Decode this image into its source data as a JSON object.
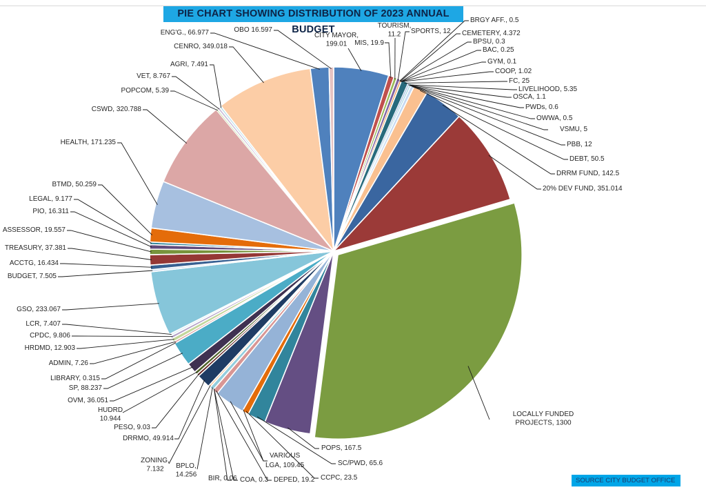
{
  "chart_data": {
    "type": "pie",
    "title": "PIE CHART SHOWING DISTRIBUTION OF 2023 ANNUAL BUDGET",
    "source": "SOURCE   CITY BUDGET  OFFICE",
    "slices": [
      {
        "name": "CITY MAYOR",
        "value": 199.01,
        "label": [
          "CITY MAYOR,",
          "199.01"
        ],
        "color": "#4f81bd"
      },
      {
        "name": "MIS",
        "value": 19.9,
        "label": [
          "MIS, 19.9"
        ],
        "color": "#c0504d"
      },
      {
        "name": "TOURISM",
        "value": 11.2,
        "label": [
          "TOURISM,",
          "11.2"
        ],
        "color": "#9bbb59"
      },
      {
        "name": "SPORTS",
        "value": 12,
        "label": [
          "SPORTS, 12"
        ],
        "color": "#8064a2"
      },
      {
        "name": "BRGY AFF.",
        "value": 0.5,
        "label": [
          "BRGY AFF., 0.5"
        ],
        "color": "#4bacc6"
      },
      {
        "name": "CEMETERY",
        "value": 4.372,
        "label": [
          "CEMETERY, 4.372"
        ],
        "color": "#f79646"
      },
      {
        "name": "BPSU",
        "value": 0.3,
        "label": [
          "BPSU, 0.3"
        ],
        "color": "#2c4d75"
      },
      {
        "name": "BAC",
        "value": 0.25,
        "label": [
          "BAC, 0.25"
        ],
        "color": "#772c2a"
      },
      {
        "name": "GYM",
        "value": 0.1,
        "label": [
          "GYM, 0.1"
        ],
        "color": "#5f7530"
      },
      {
        "name": "COOP",
        "value": 1.02,
        "label": [
          "COOP, 1.02"
        ],
        "color": "#4d3b62"
      },
      {
        "name": "FC",
        "value": 25,
        "label": [
          "FC, 25"
        ],
        "color": "#276a7c"
      },
      {
        "name": "LIVELIHOOD",
        "value": 5.35,
        "label": [
          "LIVELIHOOD, 5.35"
        ],
        "color": "#b9cde5"
      },
      {
        "name": "OSCA",
        "value": 1.1,
        "label": [
          "OSCA, 1.1"
        ],
        "color": "#93cddd"
      },
      {
        "name": "PWDs",
        "value": 0.6,
        "label": [
          "PWDs, 0.6"
        ],
        "color": "#c3d69b"
      },
      {
        "name": "OWWA",
        "value": 0.5,
        "label": [
          "OWWA, 0.5"
        ],
        "color": "#b3a2c7"
      },
      {
        "name": "VSMU",
        "value": 5,
        "label": [
          "VSMU, 5"
        ],
        "color": "#93cddd"
      },
      {
        "name": "PBB",
        "value": 12,
        "label": [
          "PBB, 12"
        ],
        "color": "#c6d9f1"
      },
      {
        "name": "DEBT",
        "value": 50.5,
        "label": [
          "DEBT, 50.5"
        ],
        "color": "#fac090"
      },
      {
        "name": "DRRM FUND",
        "value": 142.5,
        "label": [
          "DRRM FUND, 142.5"
        ],
        "color": "#3a66a0"
      },
      {
        "name": "20% DEV FUND",
        "value": 351.014,
        "label": [
          "20% DEV FUND, 351.014"
        ],
        "color": "#9b3a38"
      },
      {
        "name": "LOCALLY FUNDED PROJECTS",
        "value": 1300,
        "label": [
          "LOCALLY FUNDED",
          "PROJECTS, 1300"
        ],
        "color": "#7b9c41"
      },
      {
        "name": "POPS",
        "value": 167.5,
        "label": [
          "POPS, 167.5"
        ],
        "color": "#644e83"
      },
      {
        "name": "SC/PWD",
        "value": 65.6,
        "label": [
          "SC/PWD, 65.6"
        ],
        "color": "#31859c"
      },
      {
        "name": "CCPC",
        "value": 23.5,
        "label": [
          "CCPC, 23.5"
        ],
        "color": "#e46c0a"
      },
      {
        "name": "VARIOUS",
        "value": 0,
        "label": [
          "VARIOUS"
        ],
        "color": "#95b3d7"
      },
      {
        "name": "LGA",
        "value": 109.45,
        "label": [
          "LGA, 109.45"
        ],
        "color": "#95b3d7"
      },
      {
        "name": "DEPED",
        "value": 19.2,
        "label": [
          "DEPED, 19.2"
        ],
        "color": "#d99694"
      },
      {
        "name": "COA",
        "value": 0.3,
        "label": [
          "COA, 0.3"
        ],
        "color": "#c3d69b"
      },
      {
        "name": "BIR",
        "value": 0.06,
        "label": [
          "BIR, 0.06"
        ],
        "color": "#b3a2c7"
      },
      {
        "name": "BPLO",
        "value": 14.256,
        "label": [
          "BPLO,",
          "14.256"
        ],
        "color": "#93cddd"
      },
      {
        "name": "ZONING",
        "value": 7.132,
        "label": [
          "ZONING,",
          "7.132"
        ],
        "color": "#fac090"
      },
      {
        "name": "DRRMO",
        "value": 49.914,
        "label": [
          "DRRMO, 49.914"
        ],
        "color": "#1f3c64"
      },
      {
        "name": "PESO",
        "value": 9.03,
        "label": [
          "PESO, 9.03"
        ],
        "color": "#632523"
      },
      {
        "name": "HUDRD",
        "value": 10.944,
        "label": [
          "HUDRD",
          "10.944"
        ],
        "color": "#4f6228"
      },
      {
        "name": "OVM",
        "value": 36.051,
        "label": [
          "OVM, 36.051"
        ],
        "color": "#3f3151"
      },
      {
        "name": "SP",
        "value": 88.237,
        "label": [
          "SP, 88.237"
        ],
        "color": "#4bacc6"
      },
      {
        "name": "LIBRARY",
        "value": 0.315,
        "label": [
          "LIBRARY, 0.315"
        ],
        "color": "#e46c0a"
      },
      {
        "name": "ADMIN",
        "value": 7.26,
        "label": [
          "ADMIN, 7.26"
        ],
        "color": "#d99694"
      },
      {
        "name": "HRDMD",
        "value": 12.903,
        "label": [
          "HRDMD, 12.903"
        ],
        "color": "#c3d69b"
      },
      {
        "name": "CPDC",
        "value": 9.806,
        "label": [
          "CPDC, 9.806"
        ],
        "color": "#b3a2c7"
      },
      {
        "name": "LCR",
        "value": 7.407,
        "label": [
          "LCR, 7.407"
        ],
        "color": "#dbeef4"
      },
      {
        "name": "GSO",
        "value": 233.067,
        "label": [
          "GSO, 233.067"
        ],
        "color": "#86c6da"
      },
      {
        "name": "BUDGET",
        "value": 7.505,
        "label": [
          "BUDGET, 7.505"
        ],
        "color": "#c6d9f1"
      },
      {
        "name": "ACCTG",
        "value": 16.434,
        "label": [
          "ACCTG, 16.434"
        ],
        "color": "#376092"
      },
      {
        "name": "TREASURY",
        "value": 37.381,
        "label": [
          "TREASURY, 37.381"
        ],
        "color": "#953735"
      },
      {
        "name": "ASSESSOR",
        "value": 19.557,
        "label": [
          "ASSESSOR, 19.557"
        ],
        "color": "#77933c"
      },
      {
        "name": "PIO",
        "value": 16.311,
        "label": [
          "PIO, 16.311"
        ],
        "color": "#604a7b"
      },
      {
        "name": "LEGAL",
        "value": 9.177,
        "label": [
          "LEGAL, 9.177"
        ],
        "color": "#31859c"
      },
      {
        "name": "BTMD",
        "value": 50.259,
        "label": [
          "BTMD, 50.259"
        ],
        "color": "#e46c0a"
      },
      {
        "name": "HEALTH",
        "value": 171.235,
        "label": [
          "HEALTH, 171.235"
        ],
        "color": "#a7c0e0"
      },
      {
        "name": "CSWD",
        "value": 320.788,
        "label": [
          "CSWD, 320.788"
        ],
        "color": "#dca7a6"
      },
      {
        "name": "POPCOM",
        "value": 5.39,
        "label": [
          "POPCOM, 5.39"
        ],
        "color": "#d7e4bd"
      },
      {
        "name": "VET",
        "value": 8.767,
        "label": [
          "VET, 8.767"
        ],
        "color": "#ccc1da"
      },
      {
        "name": "AGRI",
        "value": 7.491,
        "label": [
          "AGRI, 7.491"
        ],
        "color": "#b7dee8"
      },
      {
        "name": "CENRO",
        "value": 349.018,
        "label": [
          "CENRO, 349.018"
        ],
        "color": "#fccda6"
      },
      {
        "name": "ENG'G.",
        "value": 66.977,
        "label": [
          "ENG'G., 66.977"
        ],
        "color": "#4f81bd"
      },
      {
        "name": "OBO",
        "value": 16.597,
        "label": [
          "OBO 16.597"
        ],
        "color": "#e6c3c2"
      }
    ]
  }
}
